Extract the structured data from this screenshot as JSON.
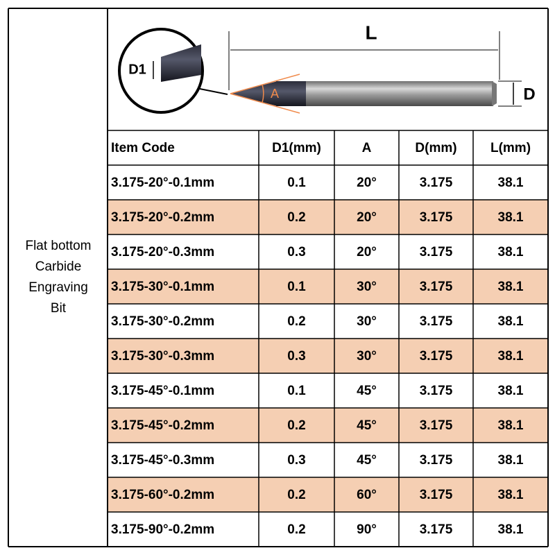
{
  "side_label": [
    "Flat bottom",
    "Carbide",
    "Engraving",
    "Bit"
  ],
  "diagram": {
    "length_label": "L",
    "tip_label": "D1",
    "angle_label": "A",
    "diameter_label": "D"
  },
  "table": {
    "header": [
      "Item Code",
      "D1(mm)",
      "A",
      "D(mm)",
      "L(mm)"
    ],
    "rows": [
      [
        "3.175-20°-0.1mm",
        "0.1",
        "20°",
        "3.175",
        "38.1"
      ],
      [
        "3.175-20°-0.2mm",
        "0.2",
        "20°",
        "3.175",
        "38.1"
      ],
      [
        "3.175-20°-0.3mm",
        "0.3",
        "20°",
        "3.175",
        "38.1"
      ],
      [
        "3.175-30°-0.1mm",
        "0.1",
        "30°",
        "3.175",
        "38.1"
      ],
      [
        "3.175-30°-0.2mm",
        "0.2",
        "30°",
        "3.175",
        "38.1"
      ],
      [
        "3.175-30°-0.3mm",
        "0.3",
        "30°",
        "3.175",
        "38.1"
      ],
      [
        "3.175-45°-0.1mm",
        "0.1",
        "45°",
        "3.175",
        "38.1"
      ],
      [
        "3.175-45°-0.2mm",
        "0.2",
        "45°",
        "3.175",
        "38.1"
      ],
      [
        "3.175-45°-0.3mm",
        "0.3",
        "45°",
        "3.175",
        "38.1"
      ],
      [
        "3.175-60°-0.2mm",
        "0.2",
        "60°",
        "3.175",
        "38.1"
      ],
      [
        "3.175-90°-0.2mm",
        "0.2",
        "90°",
        "3.175",
        "38.1"
      ]
    ]
  }
}
